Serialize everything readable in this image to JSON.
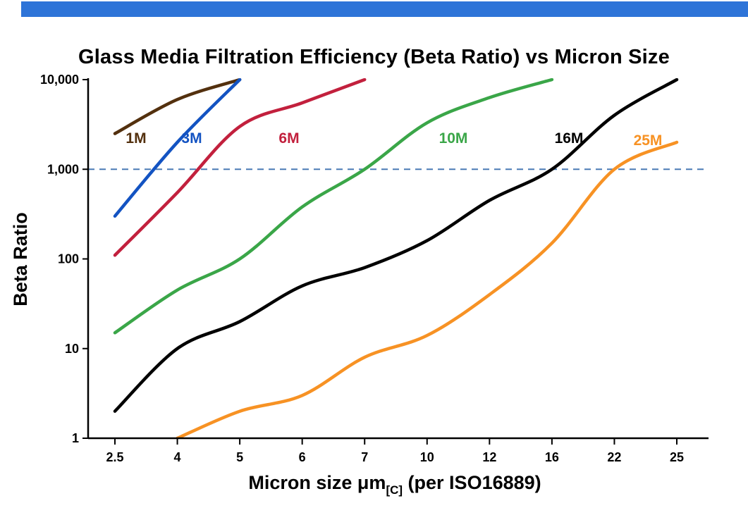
{
  "banner": {
    "color": "#2e74d8"
  },
  "title": "Glass Media Filtration Efficiency (Beta Ratio) vs Micron Size",
  "chart_data": {
    "type": "line",
    "title": "Glass Media Filtration Efficiency (Beta Ratio) vs Micron Size",
    "x_scale": "categorical",
    "y_scale": "log",
    "categories": [
      "2.5",
      "4",
      "5",
      "6",
      "7",
      "10",
      "12",
      "16",
      "22",
      "25"
    ],
    "y_ticks": [
      "1",
      "10",
      "100",
      "1,000",
      "10,000"
    ],
    "ylim": [
      1,
      10000
    ],
    "ylabel": "Beta Ratio",
    "xlabel_parts": {
      "pre": "Micron size μm",
      "sub": "[C]",
      "post": " (per ISO16889)"
    },
    "reference_line": {
      "value": 1000,
      "style": "dashed",
      "color": "#4a7ab5"
    },
    "grid": false,
    "legend_position": "inline-labels",
    "series": [
      {
        "name": "1M",
        "color": "#53300e",
        "values": [
          2500,
          6000,
          10000,
          null,
          null,
          null,
          null,
          null,
          null,
          null
        ]
      },
      {
        "name": "3M",
        "color": "#1353c2",
        "values": [
          300,
          2000,
          10000,
          null,
          null,
          null,
          null,
          null,
          null,
          null
        ]
      },
      {
        "name": "6M",
        "color": "#c2203d",
        "values": [
          110,
          550,
          3000,
          5500,
          10000,
          null,
          null,
          null,
          null,
          null
        ]
      },
      {
        "name": "10M",
        "color": "#3aa648",
        "values": [
          15,
          45,
          100,
          380,
          1000,
          3300,
          6300,
          10000,
          null,
          null
        ]
      },
      {
        "name": "16M",
        "color": "#000000",
        "values": [
          2,
          10,
          20,
          50,
          80,
          160,
          450,
          1000,
          4000,
          10000
        ]
      },
      {
        "name": "25M",
        "color": "#f79224",
        "values": [
          null,
          1,
          2,
          3,
          8,
          14,
          40,
          150,
          1000,
          2000
        ]
      }
    ]
  }
}
